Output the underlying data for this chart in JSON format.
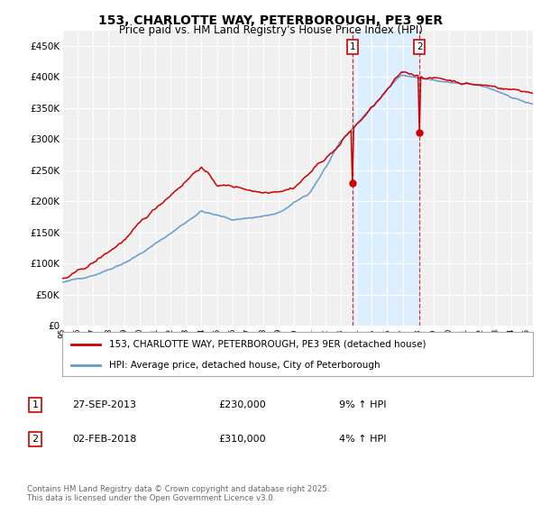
{
  "title": "153, CHARLOTTE WAY, PETERBOROUGH, PE3 9ER",
  "subtitle": "Price paid vs. HM Land Registry's House Price Index (HPI)",
  "background_color": "#ffffff",
  "plot_bg_color": "#f0f0f0",
  "grid_color": "#ffffff",
  "hpi_shade_color": "#ddeeff",
  "hpi_line_color": "#6699cc",
  "price_line_color": "#cc0000",
  "legend_label_price": "153, CHARLOTTE WAY, PETERBOROUGH, PE3 9ER (detached house)",
  "legend_label_hpi": "HPI: Average price, detached house, City of Peterborough",
  "marker1_date_str": "27-SEP-2013",
  "marker1_price": "£230,000",
  "marker1_hpi": "9% ↑ HPI",
  "marker2_date_str": "02-FEB-2018",
  "marker2_price": "£310,000",
  "marker2_hpi": "4% ↑ HPI",
  "footer": "Contains HM Land Registry data © Crown copyright and database right 2025.\nThis data is licensed under the Open Government Licence v3.0.",
  "ylim": [
    0,
    475000
  ],
  "yticks": [
    0,
    50000,
    100000,
    150000,
    200000,
    250000,
    300000,
    350000,
    400000,
    450000
  ],
  "ytick_labels": [
    "£0",
    "£50K",
    "£100K",
    "£150K",
    "£200K",
    "£250K",
    "£300K",
    "£350K",
    "£400K",
    "£450K"
  ]
}
